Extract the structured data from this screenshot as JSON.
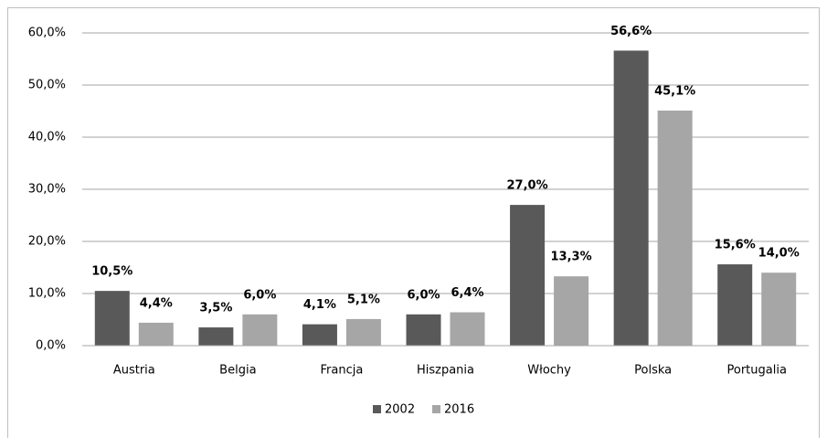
{
  "chart_data": {
    "type": "bar",
    "categories": [
      "Austria",
      "Belgia",
      "Francja",
      "Hiszpania",
      "Włochy",
      "Polska",
      "Portugalia"
    ],
    "series": [
      {
        "name": "2002",
        "color": "#595959",
        "values": [
          10.5,
          3.5,
          4.1,
          6.0,
          27.0,
          56.6,
          15.6
        ],
        "value_labels": [
          "10,5%",
          "3,5%",
          "4,1%",
          "6,0%",
          "27,0%",
          "56,6%",
          "15,6%"
        ]
      },
      {
        "name": "2016",
        "color": "#a6a6a6",
        "values": [
          4.4,
          6.0,
          5.1,
          6.4,
          13.3,
          45.1,
          14.0
        ],
        "value_labels": [
          "4,4%",
          "6,0%",
          "5,1%",
          "6,4%",
          "13,3%",
          "45,1%",
          "14,0%"
        ]
      }
    ],
    "ylim": [
      0,
      60
    ],
    "yticks": [
      {
        "value": 0,
        "label": "0,0%"
      },
      {
        "value": 10,
        "label": "10,0%"
      },
      {
        "value": 20,
        "label": "20,0%"
      },
      {
        "value": 30,
        "label": "30,0%"
      },
      {
        "value": 40,
        "label": "40,0%"
      },
      {
        "value": 50,
        "label": "50,0%"
      },
      {
        "value": 60,
        "label": "60,0%"
      }
    ],
    "grid": true,
    "legend": "bottom"
  }
}
